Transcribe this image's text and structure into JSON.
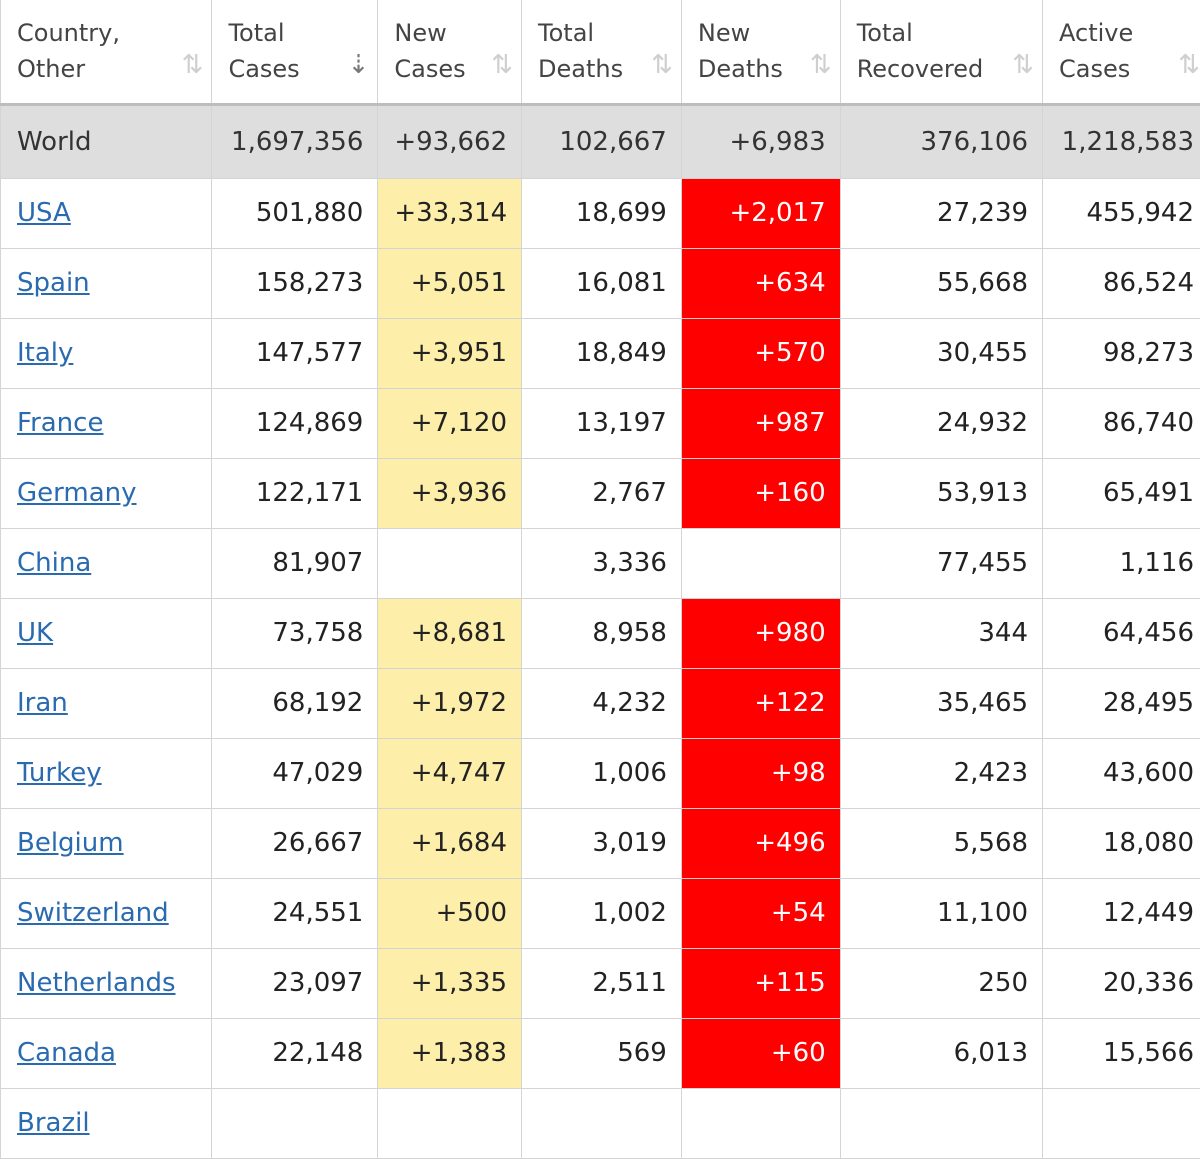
{
  "headers": [
    {
      "label": "Country,\nOther",
      "sort": "⇅"
    },
    {
      "label": "Total\nCases",
      "sort": "⇣"
    },
    {
      "label": "New\nCases",
      "sort": "⇅"
    },
    {
      "label": "Total\nDeaths",
      "sort": "⇅"
    },
    {
      "label": "New\nDeaths",
      "sort": "⇅"
    },
    {
      "label": "Total\nRecovered",
      "sort": "⇅"
    },
    {
      "label": "Active\nCases",
      "sort": "⇅"
    }
  ],
  "world": {
    "country": "World",
    "total_cases": "1,697,356",
    "new_cases": "+93,662",
    "total_deaths": "102,667",
    "new_deaths": "+6,983",
    "total_recovered": "376,106",
    "active_cases": "1,218,583"
  },
  "rows": [
    {
      "country": "USA",
      "total_cases": "501,880",
      "new_cases": "+33,314",
      "total_deaths": "18,699",
      "new_deaths": "+2,017",
      "total_recovered": "27,239",
      "active_cases": "455,942"
    },
    {
      "country": "Spain",
      "total_cases": "158,273",
      "new_cases": "+5,051",
      "total_deaths": "16,081",
      "new_deaths": "+634",
      "total_recovered": "55,668",
      "active_cases": "86,524"
    },
    {
      "country": "Italy",
      "total_cases": "147,577",
      "new_cases": "+3,951",
      "total_deaths": "18,849",
      "new_deaths": "+570",
      "total_recovered": "30,455",
      "active_cases": "98,273"
    },
    {
      "country": "France",
      "total_cases": "124,869",
      "new_cases": "+7,120",
      "total_deaths": "13,197",
      "new_deaths": "+987",
      "total_recovered": "24,932",
      "active_cases": "86,740"
    },
    {
      "country": "Germany",
      "total_cases": "122,171",
      "new_cases": "+3,936",
      "total_deaths": "2,767",
      "new_deaths": "+160",
      "total_recovered": "53,913",
      "active_cases": "65,491"
    },
    {
      "country": "China",
      "total_cases": "81,907",
      "new_cases": "",
      "total_deaths": "3,336",
      "new_deaths": "",
      "total_recovered": "77,455",
      "active_cases": "1,116"
    },
    {
      "country": "UK",
      "total_cases": "73,758",
      "new_cases": "+8,681",
      "total_deaths": "8,958",
      "new_deaths": "+980",
      "total_recovered": "344",
      "active_cases": "64,456"
    },
    {
      "country": "Iran",
      "total_cases": "68,192",
      "new_cases": "+1,972",
      "total_deaths": "4,232",
      "new_deaths": "+122",
      "total_recovered": "35,465",
      "active_cases": "28,495"
    },
    {
      "country": "Turkey",
      "total_cases": "47,029",
      "new_cases": "+4,747",
      "total_deaths": "1,006",
      "new_deaths": "+98",
      "total_recovered": "2,423",
      "active_cases": "43,600"
    },
    {
      "country": "Belgium",
      "total_cases": "26,667",
      "new_cases": "+1,684",
      "total_deaths": "3,019",
      "new_deaths": "+496",
      "total_recovered": "5,568",
      "active_cases": "18,080"
    },
    {
      "country": "Switzerland",
      "total_cases": "24,551",
      "new_cases": "+500",
      "total_deaths": "1,002",
      "new_deaths": "+54",
      "total_recovered": "11,100",
      "active_cases": "12,449"
    },
    {
      "country": "Netherlands",
      "total_cases": "23,097",
      "new_cases": "+1,335",
      "total_deaths": "2,511",
      "new_deaths": "+115",
      "total_recovered": "250",
      "active_cases": "20,336"
    },
    {
      "country": "Canada",
      "total_cases": "22,148",
      "new_cases": "+1,383",
      "total_deaths": "569",
      "new_deaths": "+60",
      "total_recovered": "6,013",
      "active_cases": "15,566"
    },
    {
      "country": "Brazil",
      "total_cases": "",
      "new_cases": "",
      "total_deaths": "",
      "new_deaths": "",
      "total_recovered": "",
      "active_cases": ""
    }
  ],
  "colors": {
    "new_cases_bg": "#fdeeaa",
    "new_deaths_bg": "#ff0000",
    "link": "#2a6ab1",
    "world_bg": "#dedede"
  }
}
